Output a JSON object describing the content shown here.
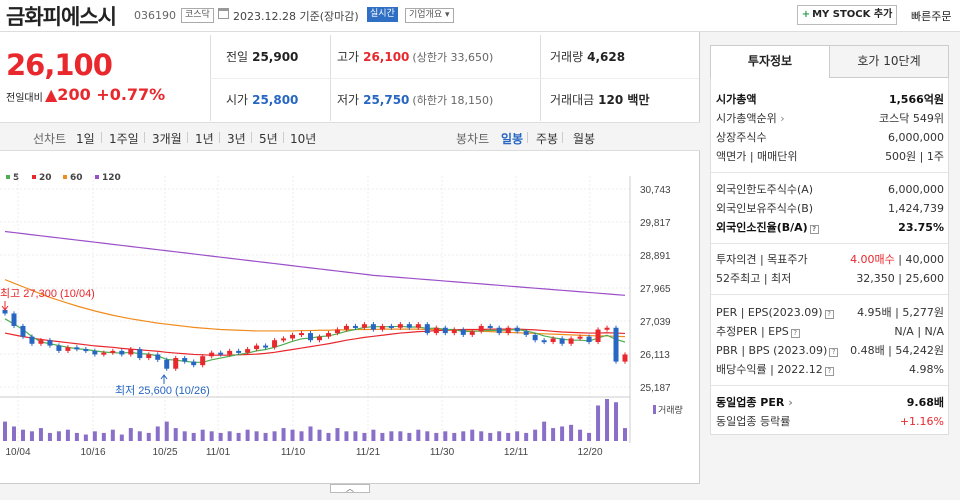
{
  "header": {
    "name": "금화피에스시",
    "code": "036190",
    "market": "코스닥",
    "date": "2023.12.28 기준(장마감)",
    "live": "실시간",
    "company_btn": "기업개요 ▾",
    "mystock_btn": "MY STOCK 추가",
    "quick_order": "빠른주문"
  },
  "quote": {
    "price": "26,100",
    "change_label": "전일대비",
    "change": "▲200",
    "change_pct": "+0.77%"
  },
  "summary": {
    "prev_label": "전일",
    "prev": "25,900",
    "high_label": "고가",
    "high": "26,100",
    "upper": "(상한가 33,650)",
    "volume_label": "거래량",
    "volume": "4,628",
    "open_label": "시가",
    "open": "25,800",
    "low_label": "저가",
    "low": "25,750",
    "lower": "(하한가 18,150)",
    "amount_label": "거래대금",
    "amount": "120 백만"
  },
  "ranges": {
    "line_label": "선차트",
    "line": [
      "1일",
      "1주일",
      "3개월",
      "1년",
      "3년",
      "5년",
      "10년"
    ],
    "candle_label": "봉차트",
    "candle": [
      "일봉",
      "주봉",
      "월봉"
    ],
    "candle_active": "일봉"
  },
  "legend": [
    {
      "label": "5",
      "color": "#4caf50"
    },
    {
      "label": "20",
      "color": "#e8282d"
    },
    {
      "label": "60",
      "color": "#f08c1e"
    },
    {
      "label": "120",
      "color": "#9b4fc8"
    }
  ],
  "chart_data": {
    "type": "candlestick",
    "y_ticks": [
      "30,743",
      "29,817",
      "28,891",
      "27,965",
      "27,039",
      "26,113",
      "25,187"
    ],
    "x_ticks": [
      "10/04",
      "10/16",
      "10/25",
      "11/01",
      "11/10",
      "11/21",
      "11/30",
      "12/11",
      "12/20"
    ],
    "annotations": {
      "max": "최고 27,300 (10/04)",
      "min": "최저 25,600 (10/26)"
    },
    "volume_label": "거래량",
    "closes": [
      27250,
      26900,
      26600,
      26400,
      26500,
      26350,
      26200,
      26300,
      26250,
      26200,
      26100,
      26150,
      26200,
      26100,
      26250,
      26000,
      26100,
      25950,
      25700,
      26000,
      25900,
      25800,
      26050,
      26150,
      26100,
      26200,
      26150,
      26250,
      26350,
      26300,
      26500,
      26550,
      26650,
      26700,
      26500,
      26600,
      26700,
      26800,
      26900,
      26850,
      26950,
      26800,
      26900,
      26850,
      26950,
      26850,
      26950,
      26700,
      26850,
      26700,
      26800,
      26650,
      26750,
      26900,
      26850,
      26700,
      26850,
      26750,
      26650,
      26500,
      26450,
      26550,
      26400,
      26550,
      26600,
      26450,
      26800,
      26850,
      25900,
      26100
    ],
    "volumes": [
      12,
      9,
      7,
      6,
      8,
      5,
      6,
      7,
      5,
      4,
      6,
      5,
      7,
      4,
      8,
      6,
      5,
      9,
      12,
      8,
      6,
      5,
      7,
      6,
      5,
      6,
      5,
      7,
      6,
      5,
      6,
      8,
      7,
      6,
      9,
      7,
      5,
      8,
      6,
      6,
      5,
      7,
      5,
      6,
      6,
      5,
      7,
      6,
      5,
      6,
      5,
      6,
      7,
      6,
      5,
      6,
      5,
      6,
      5,
      7,
      12,
      8,
      9,
      10,
      7,
      5,
      22,
      26,
      24,
      8
    ],
    "ma5": [
      27100,
      26950,
      26800,
      26600,
      26450,
      26400,
      26350,
      26300,
      26260,
      26240,
      26200,
      26170,
      26150,
      26140,
      26160,
      26120,
      26110,
      26060,
      25960,
      25940,
      25910,
      25880,
      25880,
      25950,
      26000,
      26050,
      26100,
      26140,
      26200,
      26240,
      26300,
      26380,
      26470,
      26540,
      26560,
      26600,
      26620,
      26680,
      26750,
      26800,
      26860,
      26880,
      26880,
      26880,
      26890,
      26870,
      26870,
      26830,
      26840,
      26800,
      26800,
      26740,
      26750,
      26760,
      26780,
      26770,
      26790,
      26800,
      26760,
      26700,
      26620,
      26570,
      26530,
      26500,
      26500,
      26480,
      26560,
      26640,
      26520,
      26450
    ],
    "ma20": [
      26700,
      26650,
      26600,
      26560,
      26520,
      26490,
      26460,
      26430,
      26400,
      26370,
      26340,
      26320,
      26300,
      26270,
      26250,
      26230,
      26210,
      26190,
      26160,
      26140,
      26120,
      26100,
      26090,
      26080,
      26080,
      26080,
      26090,
      26100,
      26110,
      26130,
      26160,
      26200,
      26240,
      26280,
      26320,
      26360,
      26400,
      26450,
      26500,
      26540,
      26580,
      26610,
      26640,
      26670,
      26700,
      26720,
      26740,
      26750,
      26770,
      26780,
      26790,
      26800,
      26800,
      26800,
      26810,
      26810,
      26810,
      26810,
      26800,
      26790,
      26770,
      26750,
      26730,
      26720,
      26710,
      26700,
      26700,
      26710,
      26700,
      26690
    ],
    "ma60": [
      28200,
      28100,
      28000,
      27900,
      27800,
      27700,
      27620,
      27540,
      27460,
      27390,
      27320,
      27260,
      27200,
      27150,
      27100,
      27060,
      27020,
      26980,
      26950,
      26920,
      26890,
      26860,
      26840,
      26820,
      26800,
      26790,
      26780,
      26770,
      26760,
      26760,
      26760,
      26760,
      26760,
      26770,
      26770,
      26780,
      26780,
      26790,
      26790,
      26800,
      26800,
      26800,
      26810,
      26810,
      26810,
      26810,
      26810,
      26800,
      26800,
      26790,
      26780,
      26770,
      26760,
      26750,
      26740,
      26730,
      26720,
      26710,
      26700,
      26690,
      26680,
      26670,
      26660,
      26650,
      26640,
      26630,
      26620,
      26620,
      26610,
      26600
    ],
    "ma120": [
      29550,
      29520,
      29490,
      29460,
      29430,
      29400,
      29370,
      29340,
      29310,
      29280,
      29250,
      29220,
      29190,
      29160,
      29130,
      29100,
      29070,
      29040,
      29010,
      28980,
      28950,
      28920,
      28890,
      28860,
      28830,
      28800,
      28770,
      28740,
      28710,
      28680,
      28650,
      28620,
      28590,
      28560,
      28530,
      28500,
      28470,
      28440,
      28410,
      28380,
      28350,
      28320,
      28300,
      28280,
      28260,
      28240,
      28220,
      28200,
      28180,
      28160,
      28140,
      28120,
      28100,
      28080,
      28060,
      28040,
      28020,
      28000,
      27980,
      27960,
      27940,
      27920,
      27900,
      27880,
      27860,
      27840,
      27820,
      27800,
      27780,
      27760
    ],
    "ylim": [
      25187,
      30743
    ]
  },
  "tabs": {
    "invest": "투자정보",
    "orderbook": "호가 10단계"
  },
  "invest": {
    "g1": [
      {
        "k": "시가총액",
        "v": "1,566억원",
        "b": true
      },
      {
        "k": "시가총액순위",
        "v": "코스닥 549위",
        "arrow": "›"
      },
      {
        "k": "상장주식수",
        "v": "6,000,000"
      },
      {
        "k": "액면가 | 매매단위",
        "v": "500원 | 1주"
      }
    ],
    "g2": [
      {
        "k": "외국인한도주식수(A)",
        "v": "6,000,000"
      },
      {
        "k": "외국인보유주식수(B)",
        "v": "1,424,739"
      },
      {
        "k": "외국인소진율(B/A)",
        "v": "23.75%",
        "b": true,
        "q": true
      }
    ],
    "g3": [
      {
        "k": "투자의견 | 목표주가",
        "v_red": "4.00매수",
        "v": "| 40,000"
      },
      {
        "k": "52주최고 | 최저",
        "v": "32,350 | 25,600"
      }
    ],
    "g4": [
      {
        "k": "PER | EPS(2023.09)",
        "v": "4.95배 | 5,277원",
        "q": true
      },
      {
        "k": "추정PER | EPS",
        "v": "N/A | N/A",
        "q": true
      },
      {
        "k": "PBR | BPS (2023.09)",
        "v": "0.48배 | 54,242원",
        "q": true
      },
      {
        "k": "배당수익률 | 2022.12",
        "v": "4.98%",
        "q": true
      }
    ],
    "g5": [
      {
        "k": "동일업종 PER",
        "v": "9.68배",
        "b": true,
        "arrow": "›"
      },
      {
        "k": "동일업종 등락률",
        "v": "+1.16%",
        "red": true
      }
    ]
  },
  "scroll_label": "︿"
}
